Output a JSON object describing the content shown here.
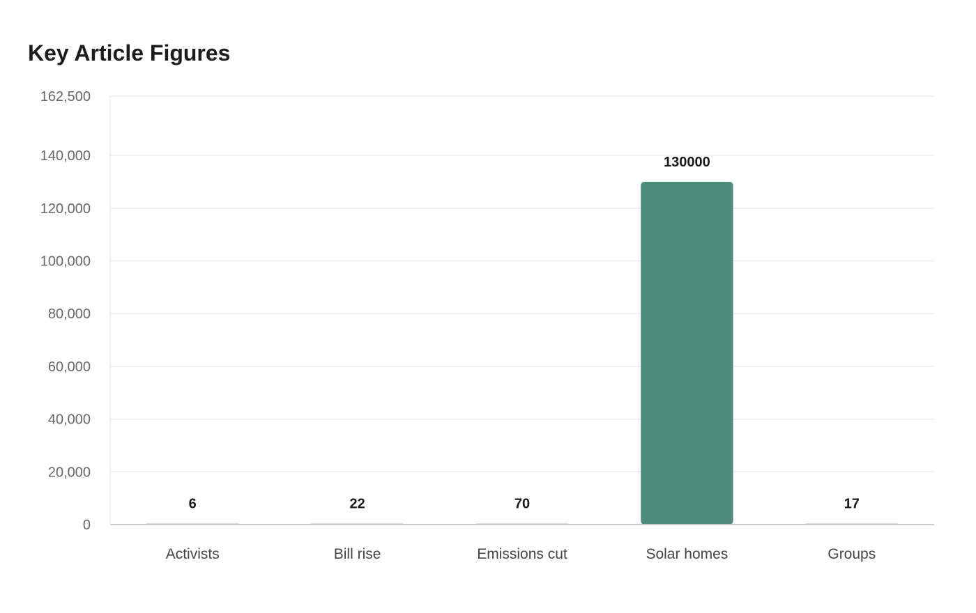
{
  "chart_data": {
    "type": "bar",
    "title": "Key Article Figures",
    "xlabel": "",
    "ylabel": "",
    "categories": [
      "Activists",
      "Bill rise",
      "Emissions cut",
      "Solar homes",
      "Groups"
    ],
    "values": [
      6,
      22,
      70,
      130000,
      17
    ],
    "data_labels": [
      "6",
      "22",
      "70",
      "130000",
      "17"
    ],
    "ylim": [
      0,
      162500
    ],
    "yticks": [
      0,
      20000,
      40000,
      60000,
      80000,
      100000,
      120000,
      140000,
      162500
    ],
    "ytick_labels": [
      "0",
      "20,000",
      "40,000",
      "60,000",
      "80,000",
      "100,000",
      "120,000",
      "140,000",
      "162,500"
    ],
    "grid": true,
    "legend": "none",
    "colors": {
      "bar": "#4e8d7c",
      "bar_faint": "#a9c2bb",
      "grid": "#ebebeb",
      "axis": "#cccccc"
    }
  }
}
